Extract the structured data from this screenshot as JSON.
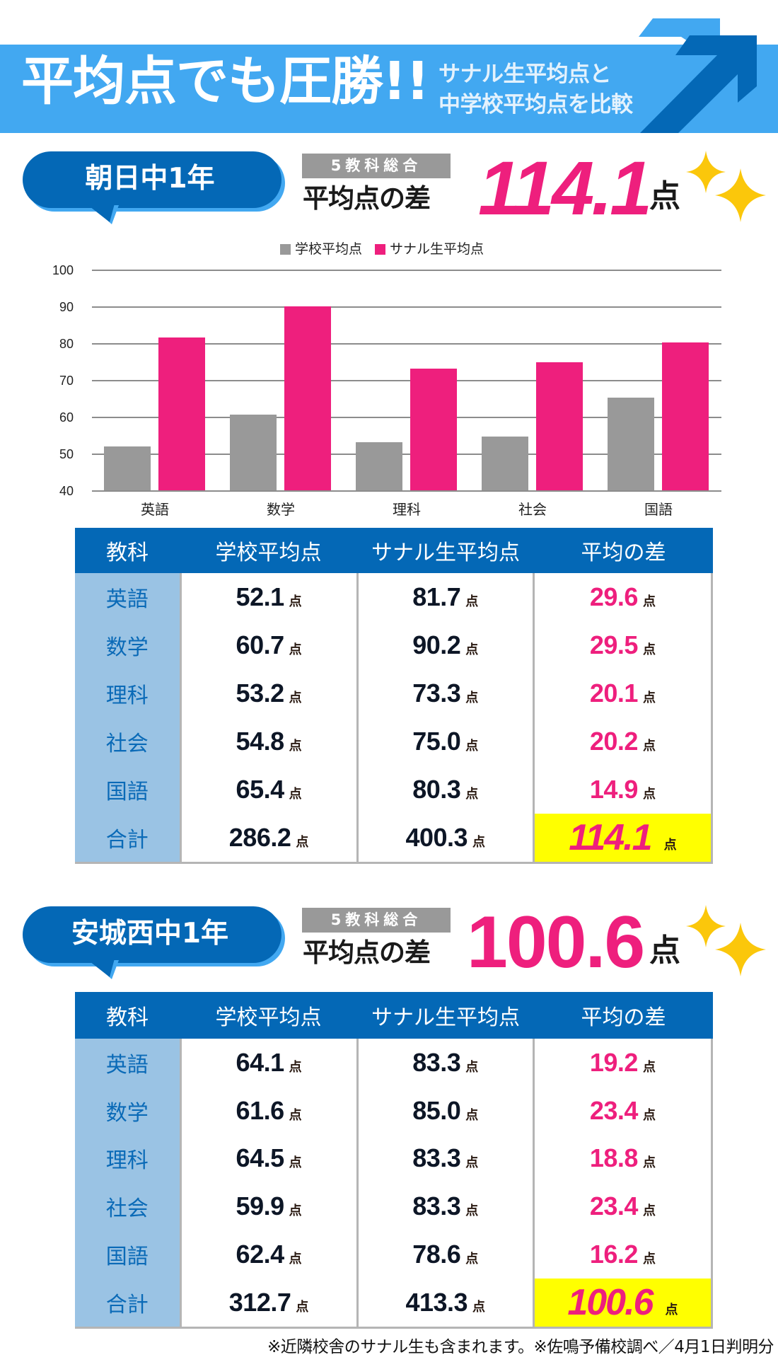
{
  "banner": {
    "title": "平均点でも圧勝!!",
    "subtitle_line1": "サナル生平均点と",
    "subtitle_line2": "中学校平均点を比較",
    "colors": {
      "band": "#42a8f1",
      "arrow_dark": "#0468b6"
    }
  },
  "sections": [
    {
      "school": "朝日中1年",
      "label_box": "5教科総合",
      "diff_label": "平均点の差",
      "total_diff": "114.1",
      "unit": "点"
    },
    {
      "school": "安城西中1年",
      "label_box": "5教科総合",
      "diff_label": "平均点の差",
      "total_diff": "100.6",
      "unit": "点"
    }
  ],
  "chart": {
    "legend": [
      "学校平均点",
      "サナル生平均点"
    ],
    "yticks": [
      "100",
      "90",
      "80",
      "70",
      "60",
      "50",
      "40"
    ],
    "categories": [
      "英語",
      "数学",
      "理科",
      "社会",
      "国語"
    ]
  },
  "chart_data": {
    "type": "bar",
    "title": "",
    "categories": [
      "英語",
      "数学",
      "理科",
      "社会",
      "国語"
    ],
    "series": [
      {
        "name": "学校平均点",
        "color": "#999999",
        "values": [
          52.1,
          60.7,
          53.2,
          54.8,
          65.4
        ]
      },
      {
        "name": "サナル生平均点",
        "color": "#ee1f7d",
        "values": [
          81.7,
          90.2,
          73.3,
          75.0,
          80.3
        ]
      }
    ],
    "xlabel": "",
    "ylabel": "",
    "ylim": [
      40,
      100
    ],
    "yticks": [
      40,
      50,
      60,
      70,
      80,
      90,
      100
    ],
    "grid": true,
    "legend_position": "top"
  },
  "table_headers": [
    "教科",
    "学校平均点",
    "サナル生平均点",
    "平均の差"
  ],
  "unit": "点",
  "tables": [
    {
      "rows": [
        {
          "subject": "英語",
          "school": "52.1",
          "sanaru": "81.7",
          "diff": "29.6"
        },
        {
          "subject": "数学",
          "school": "60.7",
          "sanaru": "90.2",
          "diff": "29.5"
        },
        {
          "subject": "理科",
          "school": "53.2",
          "sanaru": "73.3",
          "diff": "20.1"
        },
        {
          "subject": "社会",
          "school": "54.8",
          "sanaru": "75.0",
          "diff": "20.2"
        },
        {
          "subject": "国語",
          "school": "65.4",
          "sanaru": "80.3",
          "diff": "14.9"
        },
        {
          "subject": "合計",
          "school": "286.2",
          "sanaru": "400.3",
          "diff": "114.1"
        }
      ]
    },
    {
      "rows": [
        {
          "subject": "英語",
          "school": "64.1",
          "sanaru": "83.3",
          "diff": "19.2"
        },
        {
          "subject": "数学",
          "school": "61.6",
          "sanaru": "85.0",
          "diff": "23.4"
        },
        {
          "subject": "理科",
          "school": "64.5",
          "sanaru": "83.3",
          "diff": "18.8"
        },
        {
          "subject": "社会",
          "school": "59.9",
          "sanaru": "83.3",
          "diff": "23.4"
        },
        {
          "subject": "国語",
          "school": "62.4",
          "sanaru": "78.6",
          "diff": "16.2"
        },
        {
          "subject": "合計",
          "school": "312.7",
          "sanaru": "413.3",
          "diff": "100.6"
        }
      ]
    }
  ],
  "footnote": "※近隣校舎のサナル生も含まれます。※佐鳴予備校調べ／4月1日判明分"
}
